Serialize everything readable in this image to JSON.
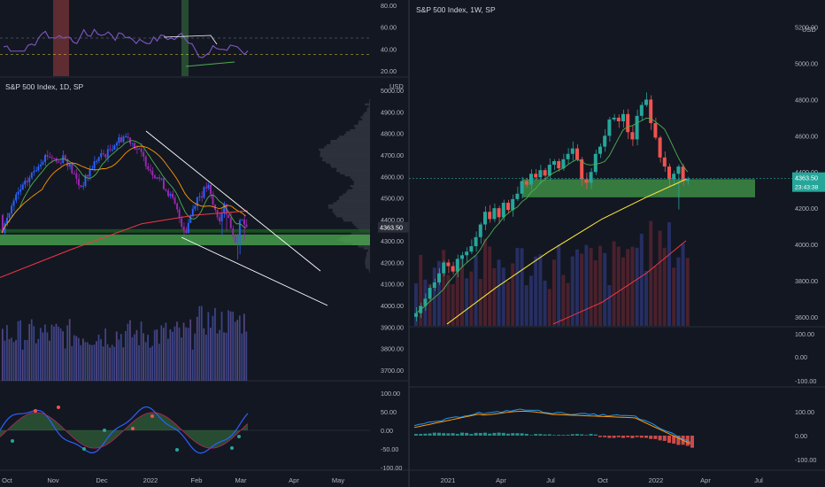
{
  "colors": {
    "background": "#131722",
    "panel_divider": "#2a2e39",
    "axis_text": "#b2b5be",
    "grid": "#1e222d",
    "bull": "#26a69a",
    "bear": "#ef5350",
    "bull_daily": "#2962ff",
    "bear_daily": "#9c27b0",
    "rsi_line": "#7e57c2",
    "ma_red": "#f23645",
    "ma_orange": "#ff9800",
    "ma_green": "#4caf50",
    "ma_yellow": "#ffeb3b",
    "zone_green": "#4caf50",
    "price_tag": "#26a69a",
    "trendline": "#ffffff",
    "macd_blue": "#2196f3",
    "macd_orange": "#ff9800"
  },
  "left_chart": {
    "title": "S&P 500 Index, 1D, SP",
    "unit_label": "USD",
    "top_rsi_axis": [
      "80.00",
      "60.00",
      "40.00",
      "20.00"
    ],
    "price_axis": [
      "5000.00",
      "4900.00",
      "4800.00",
      "4700.00",
      "4600.00",
      "4500.00",
      "4400.00",
      "4300.00",
      "4200.00",
      "4100.00",
      "4000.00",
      "3900.00",
      "3800.00",
      "3700.00"
    ],
    "price_tag": "4363.50",
    "osc_axis": [
      "100.00",
      "50.00",
      "0.00",
      "-50.00",
      "-100.00"
    ],
    "time_axis": [
      "Oct",
      "Nov",
      "Dec",
      "2022",
      "Feb",
      "Mar",
      "Apr",
      "May"
    ]
  },
  "right_chart": {
    "title": "S&P 500 Index, 1W, SP",
    "unit_label": "USD",
    "price_axis": [
      "5200.00",
      "5000.00",
      "4800.00",
      "4600.00",
      "4400.00",
      "4200.00",
      "4000.00",
      "3800.00",
      "3600.00"
    ],
    "price_tag": "4363.50",
    "countdown": "23:43:38",
    "osc1_axis": [
      "100.00",
      "0.00",
      "-100.00"
    ],
    "osc2_axis": [
      "100.00",
      "0.00",
      "-100.00"
    ],
    "time_axis": [
      "2021",
      "Apr",
      "Jul",
      "Oct",
      "2022",
      "Apr",
      "Jul"
    ]
  },
  "chart_data": [
    {
      "type": "candlestick",
      "title": "S&P 500 Index, 1D, SP",
      "unit": "USD",
      "ylim": [
        3650,
        5050
      ],
      "x_tick_labels": [
        "Oct",
        "Nov",
        "Dec",
        "2022",
        "Feb",
        "Mar",
        "Apr",
        "May"
      ],
      "last_close": 4363.5,
      "support_zone": [
        4280,
        4330
      ],
      "close_series_approx": [
        4350,
        4420,
        4480,
        4530,
        4560,
        4600,
        4640,
        4680,
        4700,
        4690,
        4660,
        4700,
        4650,
        4600,
        4550,
        4590,
        4640,
        4680,
        4700,
        4710,
        4750,
        4770,
        4790,
        4770,
        4740,
        4700,
        4660,
        4620,
        4600,
        4560,
        4520,
        4470,
        4400,
        4340,
        4430,
        4500,
        4520,
        4560,
        4460,
        4400,
        4470,
        4380,
        4300,
        4400,
        4360
      ]
    },
    {
      "type": "candlestick",
      "title": "S&P 500 Index, 1W, SP",
      "unit": "USD",
      "ylim": [
        3550,
        5350
      ],
      "x_tick_labels": [
        "2021",
        "Apr",
        "Jul",
        "Oct",
        "2022",
        "Apr",
        "Jul"
      ],
      "last_close": 4363.5,
      "support_zone": [
        4260,
        4360
      ],
      "close_series_approx": [
        3620,
        3660,
        3700,
        3760,
        3790,
        3840,
        3900,
        3880,
        3850,
        3920,
        3940,
        3960,
        3990,
        4040,
        4110,
        4180,
        4140,
        4200,
        4150,
        4230,
        4190,
        4250,
        4280,
        4350,
        4330,
        4390,
        4370,
        4410,
        4380,
        4440,
        4460,
        4420,
        4470,
        4500,
        4530,
        4470,
        4360,
        4340,
        4400,
        4500,
        4540,
        4600,
        4690,
        4700,
        4680,
        4720,
        4620,
        4580,
        4710,
        4770,
        4800,
        4670,
        4590,
        4480,
        4430,
        4360,
        4390,
        4430,
        4350,
        4363
      ]
    }
  ]
}
